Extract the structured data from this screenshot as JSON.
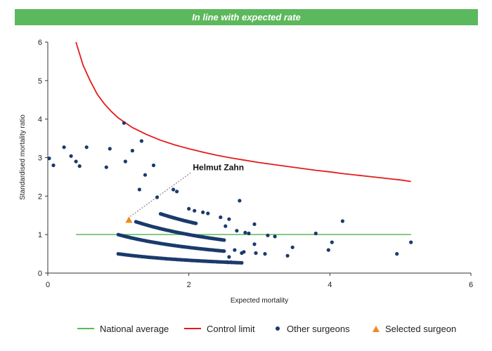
{
  "banner": {
    "title": "In line with expected rate"
  },
  "chart_data": {
    "type": "scatter",
    "xlabel": "Expected mortality",
    "ylabel": "Standardised mortality ratio",
    "xlim": [
      0,
      6
    ],
    "ylim": [
      0,
      6
    ],
    "xticks": [
      0,
      2,
      4,
      6
    ],
    "yticks": [
      0,
      1,
      2,
      3,
      4,
      5,
      6
    ],
    "grid": false,
    "legend_position": "bottom",
    "colors": {
      "national": "#5cb85c",
      "control": "#e41b1b",
      "others": "#1a3a6b",
      "selected": "#f08a1c"
    },
    "national_average": {
      "name": "National average",
      "y": 1,
      "x": [
        0.4,
        5.15
      ]
    },
    "control_limit": {
      "name": "Control limit",
      "points": [
        [
          0.4,
          6.0
        ],
        [
          0.5,
          5.4
        ],
        [
          0.6,
          5.0
        ],
        [
          0.7,
          4.65
        ],
        [
          0.8,
          4.4
        ],
        [
          0.9,
          4.2
        ],
        [
          1.0,
          4.03
        ],
        [
          1.2,
          3.78
        ],
        [
          1.4,
          3.6
        ],
        [
          1.6,
          3.45
        ],
        [
          1.8,
          3.33
        ],
        [
          2.0,
          3.23
        ],
        [
          2.2,
          3.14
        ],
        [
          2.4,
          3.06
        ],
        [
          2.6,
          2.99
        ],
        [
          2.8,
          2.93
        ],
        [
          3.0,
          2.87
        ],
        [
          3.2,
          2.82
        ],
        [
          3.4,
          2.77
        ],
        [
          3.6,
          2.72
        ],
        [
          3.8,
          2.67
        ],
        [
          4.0,
          2.63
        ],
        [
          4.2,
          2.58
        ],
        [
          4.4,
          2.54
        ],
        [
          4.6,
          2.5
        ],
        [
          4.8,
          2.46
        ],
        [
          5.0,
          2.42
        ],
        [
          5.15,
          2.38
        ]
      ]
    },
    "other_surgeons": {
      "name": "Other surgeons",
      "curve_bands": [
        {
          "numerator": 1,
          "x_min": 1.0,
          "x_max": 2.75,
          "count": 75
        },
        {
          "numerator": 2,
          "x_min": 1.0,
          "x_max": 2.5,
          "count": 70
        },
        {
          "numerator": 3,
          "x_min": 1.25,
          "x_max": 2.5,
          "count": 60
        },
        {
          "numerator": 4,
          "x_min": 1.6,
          "x_max": 2.1,
          "count": 30
        }
      ],
      "scattered": [
        [
          0.02,
          2.98
        ],
        [
          0.08,
          2.8
        ],
        [
          0.23,
          3.27
        ],
        [
          0.33,
          3.04
        ],
        [
          0.4,
          2.9
        ],
        [
          0.45,
          2.78
        ],
        [
          0.55,
          3.27
        ],
        [
          0.88,
          3.23
        ],
        [
          0.83,
          2.75
        ],
        [
          1.08,
          3.9
        ],
        [
          1.1,
          2.9
        ],
        [
          1.2,
          3.18
        ],
        [
          1.33,
          3.43
        ],
        [
          1.38,
          2.55
        ],
        [
          1.5,
          2.8
        ],
        [
          1.55,
          1.97
        ],
        [
          1.78,
          2.17
        ],
        [
          1.83,
          2.12
        ],
        [
          1.3,
          2.17
        ],
        [
          2.0,
          1.67
        ],
        [
          2.08,
          1.62
        ],
        [
          2.2,
          1.58
        ],
        [
          2.27,
          1.55
        ],
        [
          2.45,
          1.45
        ],
        [
          2.57,
          1.4
        ],
        [
          2.52,
          1.22
        ],
        [
          2.72,
          1.88
        ],
        [
          2.93,
          1.27
        ],
        [
          2.8,
          1.05
        ],
        [
          2.85,
          1.03
        ],
        [
          2.68,
          1.1
        ],
        [
          3.12,
          0.98
        ],
        [
          3.22,
          0.95
        ],
        [
          3.8,
          1.03
        ],
        [
          4.18,
          1.35
        ],
        [
          4.03,
          0.8
        ],
        [
          3.98,
          0.6
        ],
        [
          4.95,
          0.5
        ],
        [
          5.15,
          0.8
        ],
        [
          3.47,
          0.67
        ],
        [
          3.4,
          0.45
        ],
        [
          3.08,
          0.5
        ],
        [
          2.95,
          0.52
        ],
        [
          2.78,
          0.55
        ],
        [
          2.75,
          0.52
        ],
        [
          2.57,
          0.42
        ],
        [
          2.55,
          0.28
        ],
        [
          2.6,
          0.28
        ],
        [
          2.93,
          0.75
        ],
        [
          2.65,
          0.6
        ]
      ]
    },
    "selected_surgeon": {
      "name": "Selected surgeon",
      "x": 1.15,
      "y": 1.38,
      "label": "Helmut Zahn"
    }
  }
}
